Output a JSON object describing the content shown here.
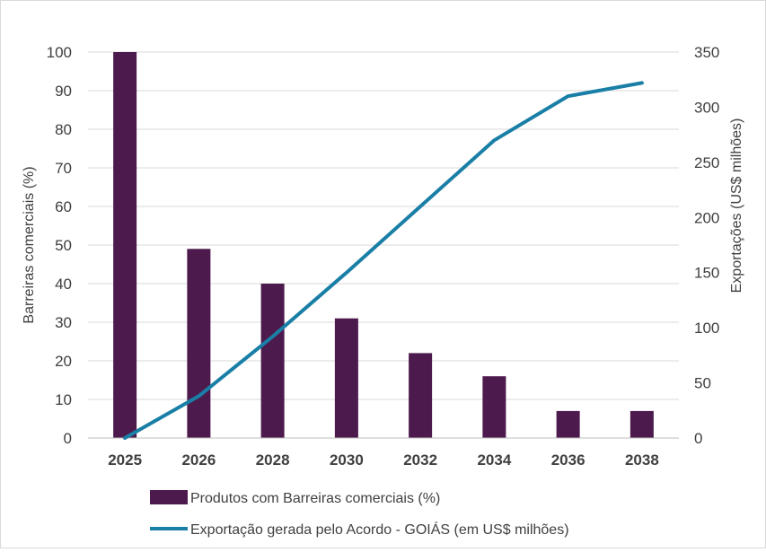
{
  "chart_data": {
    "type": "bar",
    "categories": [
      "2025",
      "2026",
      "2028",
      "2030",
      "2032",
      "2034",
      "2036",
      "2038"
    ],
    "series": [
      {
        "name": "Produtos com Barreiras comerciais (%)",
        "type": "bar",
        "axis": "left",
        "color": "#4d1a4d",
        "values": [
          100,
          49,
          40,
          31,
          22,
          16,
          7,
          7
        ]
      },
      {
        "name": "Exportação gerada pelo Acordo - GOIÁS (em US$ milhões)",
        "type": "line",
        "axis": "right",
        "color": "#1a7fa6",
        "values": [
          0,
          38,
          92,
          150,
          210,
          270,
          310,
          322
        ]
      }
    ],
    "ylabel": "Barreiras comerciais (%)",
    "ylim": [
      0,
      100
    ],
    "yticks": [
      "0",
      "10",
      "20",
      "30",
      "40",
      "50",
      "60",
      "70",
      "80",
      "90",
      "100"
    ],
    "y2label": "Exportações (US$ milhões)",
    "y2lim": [
      0,
      350
    ],
    "y2ticks": [
      "0",
      "50",
      "100",
      "150",
      "200",
      "250",
      "300",
      "350"
    ],
    "grid": true,
    "legend_position": "bottom"
  }
}
